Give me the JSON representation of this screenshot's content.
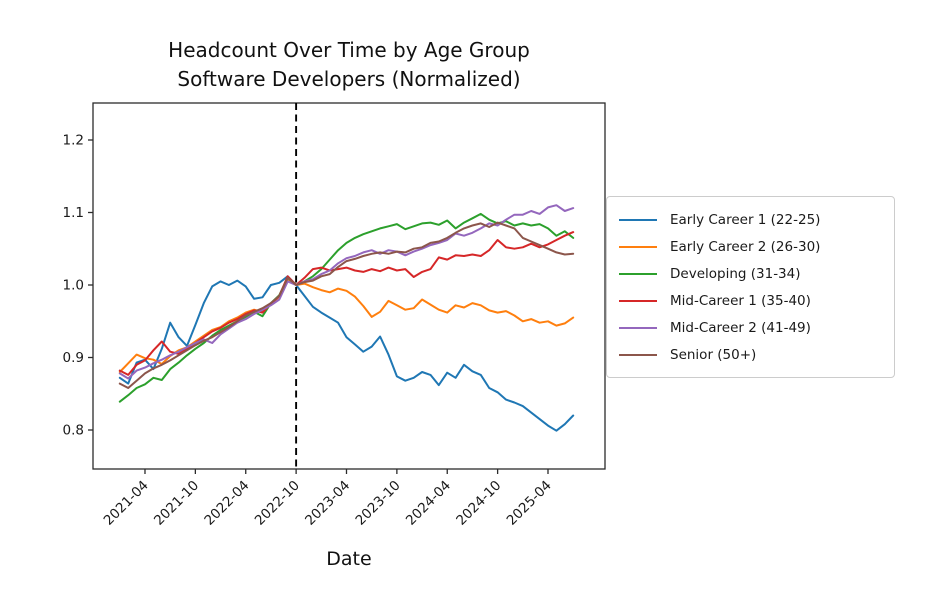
{
  "page": {
    "background": "#ffffff"
  },
  "chart_data": {
    "type": "line",
    "title": "Headcount Over Time by Age Group",
    "subtitle": "Software Developers (Normalized)",
    "xlabel": "Date",
    "ylabel": "",
    "grid": false,
    "legend_position": "right-outside",
    "ylim": [
      0.75,
      1.25
    ],
    "yticks": [
      "0.8",
      "0.9",
      "1.0",
      "1.1",
      "1.2"
    ],
    "ytick_values": [
      0.8,
      0.9,
      1.0,
      1.1,
      1.2
    ],
    "xticks": [
      "2021-04",
      "2021-10",
      "2022-04",
      "2022-10",
      "2023-04",
      "2023-10",
      "2024-04",
      "2024-10",
      "2025-04"
    ],
    "vline": {
      "x": "2022-10",
      "style": "dashed",
      "color": "#000000",
      "meaning": "normalization point"
    },
    "x": [
      "2021-01",
      "2021-02",
      "2021-03",
      "2021-04",
      "2021-05",
      "2021-06",
      "2021-07",
      "2021-08",
      "2021-09",
      "2021-10",
      "2021-11",
      "2021-12",
      "2022-01",
      "2022-02",
      "2022-03",
      "2022-04",
      "2022-05",
      "2022-06",
      "2022-07",
      "2022-08",
      "2022-09",
      "2022-10",
      "2022-11",
      "2022-12",
      "2023-01",
      "2023-02",
      "2023-03",
      "2023-04",
      "2023-05",
      "2023-06",
      "2023-07",
      "2023-08",
      "2023-09",
      "2023-10",
      "2023-11",
      "2023-12",
      "2024-01",
      "2024-02",
      "2024-03",
      "2024-04",
      "2024-05",
      "2024-06",
      "2024-07",
      "2024-08",
      "2024-09",
      "2024-10",
      "2024-11",
      "2024-12",
      "2025-01",
      "2025-02",
      "2025-03",
      "2025-04",
      "2025-05",
      "2025-06",
      "2025-07"
    ],
    "series": [
      {
        "name": "Early Career 1 (22-25)",
        "color": "#1f77b4",
        "values": [
          0.872,
          0.864,
          0.893,
          0.897,
          0.884,
          0.912,
          0.948,
          0.928,
          0.916,
          0.945,
          0.975,
          0.998,
          1.005,
          1.0,
          1.006,
          0.998,
          0.981,
          0.983,
          1.0,
          1.003,
          1.012,
          1.0,
          0.985,
          0.97,
          0.962,
          0.955,
          0.948,
          0.928,
          0.918,
          0.908,
          0.915,
          0.929,
          0.904,
          0.874,
          0.868,
          0.872,
          0.88,
          0.876,
          0.862,
          0.879,
          0.872,
          0.89,
          0.881,
          0.876,
          0.858,
          0.852,
          0.842,
          0.838,
          0.833,
          0.824,
          0.815,
          0.806,
          0.799,
          0.808,
          0.82
        ]
      },
      {
        "name": "Early Career 2 (26-30)",
        "color": "#ff7f0e",
        "values": [
          0.88,
          0.892,
          0.904,
          0.899,
          0.897,
          0.891,
          0.902,
          0.91,
          0.914,
          0.922,
          0.93,
          0.938,
          0.942,
          0.95,
          0.955,
          0.962,
          0.966,
          0.963,
          0.973,
          0.984,
          1.008,
          1.0,
          1.002,
          0.997,
          0.993,
          0.99,
          0.995,
          0.992,
          0.984,
          0.971,
          0.956,
          0.963,
          0.978,
          0.972,
          0.966,
          0.968,
          0.98,
          0.973,
          0.966,
          0.962,
          0.972,
          0.969,
          0.975,
          0.972,
          0.965,
          0.962,
          0.964,
          0.958,
          0.95,
          0.953,
          0.948,
          0.95,
          0.944,
          0.947,
          0.955
        ]
      },
      {
        "name": "Developing (31-34)",
        "color": "#2ca02c",
        "values": [
          0.839,
          0.848,
          0.858,
          0.863,
          0.872,
          0.869,
          0.884,
          0.893,
          0.903,
          0.912,
          0.92,
          0.93,
          0.938,
          0.944,
          0.95,
          0.956,
          0.963,
          0.957,
          0.975,
          0.986,
          1.01,
          1.0,
          1.005,
          1.012,
          1.022,
          1.035,
          1.048,
          1.058,
          1.065,
          1.07,
          1.074,
          1.078,
          1.081,
          1.084,
          1.077,
          1.081,
          1.085,
          1.086,
          1.083,
          1.089,
          1.078,
          1.086,
          1.092,
          1.098,
          1.09,
          1.085,
          1.088,
          1.082,
          1.085,
          1.082,
          1.084,
          1.078,
          1.068,
          1.074,
          1.065
        ]
      },
      {
        "name": "Mid-Career 1 (35-40)",
        "color": "#d62728",
        "values": [
          0.882,
          0.876,
          0.89,
          0.896,
          0.91,
          0.922,
          0.908,
          0.905,
          0.912,
          0.92,
          0.928,
          0.936,
          0.941,
          0.948,
          0.953,
          0.96,
          0.965,
          0.962,
          0.974,
          0.985,
          1.012,
          1.0,
          1.01,
          1.022,
          1.024,
          1.02,
          1.022,
          1.024,
          1.02,
          1.018,
          1.022,
          1.019,
          1.024,
          1.02,
          1.022,
          1.011,
          1.018,
          1.022,
          1.038,
          1.035,
          1.041,
          1.04,
          1.042,
          1.04,
          1.048,
          1.062,
          1.052,
          1.05,
          1.052,
          1.057,
          1.052,
          1.056,
          1.062,
          1.068,
          1.073
        ]
      },
      {
        "name": "Mid-Career 2 (41-49)",
        "color": "#9467bd",
        "values": [
          0.878,
          0.871,
          0.882,
          0.886,
          0.892,
          0.897,
          0.903,
          0.908,
          0.914,
          0.92,
          0.925,
          0.92,
          0.932,
          0.94,
          0.948,
          0.953,
          0.96,
          0.966,
          0.972,
          0.98,
          1.005,
          1.0,
          1.005,
          1.008,
          1.015,
          1.02,
          1.03,
          1.037,
          1.04,
          1.045,
          1.048,
          1.043,
          1.048,
          1.046,
          1.041,
          1.046,
          1.05,
          1.055,
          1.058,
          1.062,
          1.071,
          1.068,
          1.072,
          1.078,
          1.085,
          1.082,
          1.09,
          1.097,
          1.097,
          1.102,
          1.098,
          1.107,
          1.11,
          1.102,
          1.106
        ]
      },
      {
        "name": "Senior (50+)",
        "color": "#8c564b",
        "values": [
          0.864,
          0.858,
          0.868,
          0.878,
          0.885,
          0.89,
          0.896,
          0.903,
          0.91,
          0.917,
          0.923,
          0.928,
          0.935,
          0.942,
          0.95,
          0.958,
          0.963,
          0.968,
          0.975,
          0.985,
          1.01,
          1.0,
          1.004,
          1.006,
          1.012,
          1.015,
          1.025,
          1.033,
          1.036,
          1.04,
          1.043,
          1.045,
          1.043,
          1.046,
          1.045,
          1.05,
          1.052,
          1.058,
          1.06,
          1.065,
          1.072,
          1.078,
          1.082,
          1.085,
          1.08,
          1.086,
          1.082,
          1.078,
          1.065,
          1.06,
          1.055,
          1.05,
          1.045,
          1.042,
          1.043
        ]
      }
    ]
  }
}
